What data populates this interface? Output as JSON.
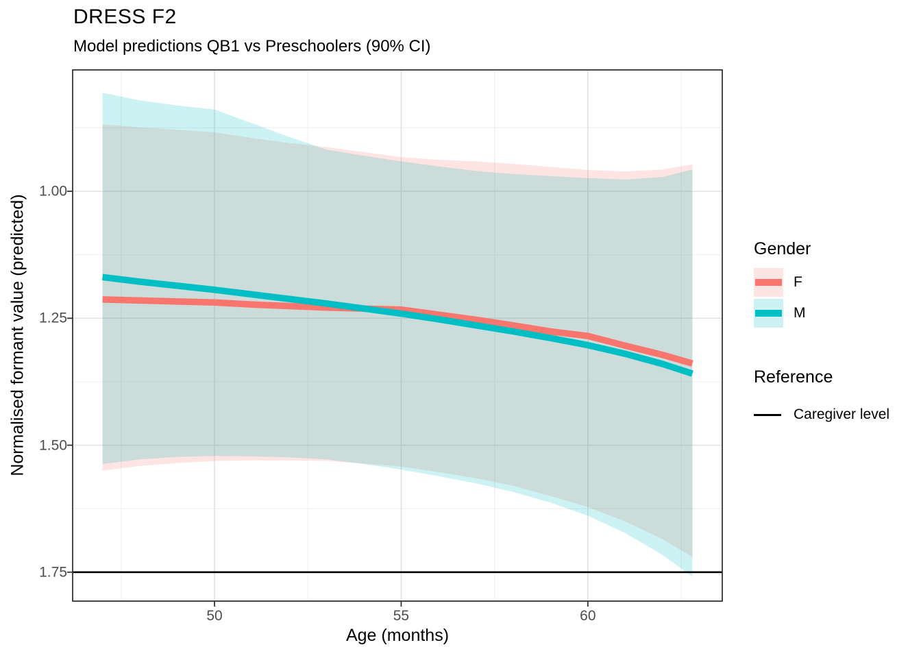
{
  "header": {
    "title": "DRESS F2",
    "subtitle": "Model predictions QB1 vs Preschoolers (90% CI)"
  },
  "legend": {
    "gender_title": "Gender",
    "items": [
      {
        "label": "F"
      },
      {
        "label": "M"
      }
    ],
    "reference_title": "Reference",
    "reference_label": "Caregiver level"
  },
  "chart_data": {
    "type": "line",
    "title": "DRESS F2",
    "subtitle": "Model predictions QB1 vs Preschoolers (90% CI)",
    "xlabel": "Age (months)",
    "ylabel": "Normalised formant value (predicted)",
    "ci_level": "90%",
    "y_axis_reversed": true,
    "x_range": [
      46.2,
      63.6
    ],
    "y_range_top_to_bottom": [
      0.761,
      1.807
    ],
    "x_major_ticks": [
      50,
      55,
      60
    ],
    "x_tick_labels": [
      "50",
      "55",
      "60"
    ],
    "x_minor_gridlines": [
      47.5,
      52.5,
      57.5,
      62.5
    ],
    "y_major_ticks": [
      1.0,
      1.25,
      1.5,
      1.75
    ],
    "y_tick_labels": [
      "1.00",
      "1.25",
      "1.50",
      "1.75"
    ],
    "y_minor_gridlines": [
      0.875,
      1.125,
      1.375,
      1.625
    ],
    "reference_line_y": 1.75,
    "reference_color": "#000000",
    "grid_on": true,
    "legend_position": "right",
    "x": [
      47,
      48,
      49,
      50,
      51,
      52,
      53,
      54,
      55,
      56,
      57,
      58,
      59,
      60,
      61,
      62,
      62.8
    ],
    "series": [
      {
        "name": "F",
        "color": "#F8766D",
        "ribbon_alpha": 0.2,
        "values": [
          1.213,
          1.215,
          1.217,
          1.219,
          1.223,
          1.226,
          1.229,
          1.231,
          1.233,
          1.243,
          1.253,
          1.264,
          1.276,
          1.285,
          1.304,
          1.322,
          1.339
        ],
        "ci_lower": [
          0.868,
          0.874,
          0.879,
          0.884,
          0.895,
          0.905,
          0.913,
          0.923,
          0.933,
          0.938,
          0.941,
          0.946,
          0.952,
          0.958,
          0.961,
          0.957,
          0.947
        ],
        "ci_upper": [
          1.55,
          1.541,
          1.535,
          1.531,
          1.53,
          1.53,
          1.531,
          1.536,
          1.542,
          1.553,
          1.565,
          1.58,
          1.6,
          1.622,
          1.65,
          1.685,
          1.72
        ]
      },
      {
        "name": "M",
        "color": "#00BFC4",
        "ribbon_alpha": 0.2,
        "values": [
          1.169,
          1.178,
          1.186,
          1.194,
          1.203,
          1.212,
          1.221,
          1.231,
          1.241,
          1.252,
          1.264,
          1.276,
          1.289,
          1.303,
          1.32,
          1.34,
          1.359
        ],
        "ci_lower": [
          0.806,
          0.821,
          0.831,
          0.839,
          0.866,
          0.893,
          0.918,
          0.93,
          0.941,
          0.951,
          0.96,
          0.966,
          0.97,
          0.974,
          0.977,
          0.972,
          0.957
        ],
        "ci_upper": [
          1.537,
          1.528,
          1.523,
          1.521,
          1.522,
          1.524,
          1.528,
          1.537,
          1.548,
          1.561,
          1.575,
          1.592,
          1.613,
          1.639,
          1.673,
          1.716,
          1.759
        ]
      }
    ]
  }
}
